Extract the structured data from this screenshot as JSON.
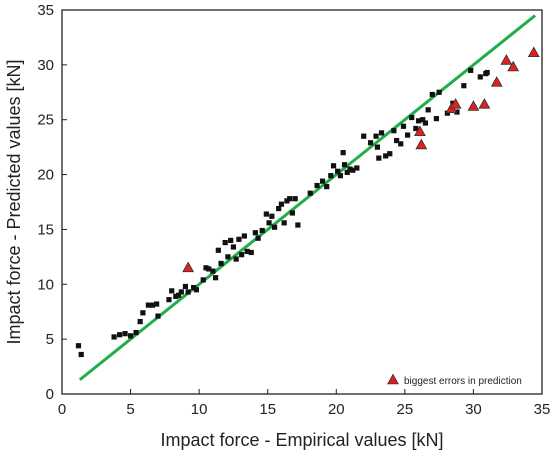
{
  "chart_data": {
    "type": "scatter",
    "title": "",
    "xlabel": "Impact force - Empirical values [kN]",
    "ylabel": "Impact force - Predicted values [kN]",
    "xlim": [
      0,
      35
    ],
    "ylim": [
      0,
      35
    ],
    "xticks": [
      0,
      5,
      10,
      15,
      20,
      25,
      30,
      35
    ],
    "yticks": [
      0,
      5,
      10,
      15,
      20,
      25,
      30,
      35
    ],
    "grid": false,
    "legend_position": "bottom-right",
    "fit_line": {
      "x": [
        1.3,
        34.5
      ],
      "y": [
        1.3,
        34.5
      ],
      "color": "#1fae48"
    },
    "series": [
      {
        "marker": "square",
        "color": "#111111",
        "points": [
          [
            1.2,
            4.4
          ],
          [
            1.4,
            3.6
          ],
          [
            3.8,
            5.2
          ],
          [
            4.2,
            5.4
          ],
          [
            4.6,
            5.5
          ],
          [
            5.0,
            5.3
          ],
          [
            5.4,
            5.6
          ],
          [
            5.7,
            6.6
          ],
          [
            5.9,
            7.4
          ],
          [
            6.3,
            8.1
          ],
          [
            6.6,
            8.1
          ],
          [
            6.9,
            8.2
          ],
          [
            7.0,
            7.1
          ],
          [
            7.8,
            8.6
          ],
          [
            8.0,
            9.4
          ],
          [
            8.3,
            8.9
          ],
          [
            8.5,
            9.0
          ],
          [
            8.7,
            9.3
          ],
          [
            9.0,
            9.8
          ],
          [
            9.2,
            9.3
          ],
          [
            9.6,
            9.7
          ],
          [
            9.8,
            9.5
          ],
          [
            10.3,
            10.4
          ],
          [
            10.5,
            11.5
          ],
          [
            10.7,
            11.4
          ],
          [
            11.0,
            11.2
          ],
          [
            11.2,
            10.6
          ],
          [
            11.4,
            13.1
          ],
          [
            11.6,
            11.9
          ],
          [
            11.9,
            13.8
          ],
          [
            12.1,
            12.5
          ],
          [
            12.3,
            14.0
          ],
          [
            12.5,
            13.4
          ],
          [
            12.7,
            12.3
          ],
          [
            12.9,
            14.1
          ],
          [
            13.1,
            12.7
          ],
          [
            13.3,
            14.4
          ],
          [
            13.5,
            13.0
          ],
          [
            13.8,
            12.9
          ],
          [
            14.1,
            14.7
          ],
          [
            14.3,
            14.2
          ],
          [
            14.6,
            14.9
          ],
          [
            14.9,
            16.4
          ],
          [
            15.1,
            15.6
          ],
          [
            15.3,
            16.2
          ],
          [
            15.5,
            15.2
          ],
          [
            15.8,
            16.9
          ],
          [
            16.0,
            17.3
          ],
          [
            16.2,
            15.6
          ],
          [
            16.4,
            17.6
          ],
          [
            16.6,
            17.8
          ],
          [
            16.8,
            16.5
          ],
          [
            17.0,
            17.8
          ],
          [
            17.2,
            15.4
          ],
          [
            18.1,
            18.3
          ],
          [
            18.6,
            19.0
          ],
          [
            19.0,
            19.4
          ],
          [
            19.3,
            18.9
          ],
          [
            19.6,
            19.9
          ],
          [
            19.8,
            20.8
          ],
          [
            20.1,
            20.3
          ],
          [
            20.3,
            19.9
          ],
          [
            20.5,
            22.0
          ],
          [
            20.6,
            20.9
          ],
          [
            20.8,
            20.2
          ],
          [
            21.0,
            20.5
          ],
          [
            21.2,
            20.4
          ],
          [
            21.5,
            20.6
          ],
          [
            22.0,
            23.5
          ],
          [
            22.5,
            22.9
          ],
          [
            22.9,
            23.5
          ],
          [
            23.0,
            22.5
          ],
          [
            23.1,
            21.5
          ],
          [
            23.3,
            23.8
          ],
          [
            23.6,
            21.7
          ],
          [
            23.9,
            21.9
          ],
          [
            24.2,
            24.0
          ],
          [
            24.4,
            23.1
          ],
          [
            24.7,
            22.8
          ],
          [
            24.9,
            24.4
          ],
          [
            25.2,
            23.6
          ],
          [
            25.5,
            25.2
          ],
          [
            25.8,
            24.2
          ],
          [
            26.0,
            24.9
          ],
          [
            26.3,
            25.0
          ],
          [
            26.5,
            24.7
          ],
          [
            26.7,
            25.9
          ],
          [
            27.0,
            27.3
          ],
          [
            27.3,
            25.1
          ],
          [
            27.5,
            27.5
          ],
          [
            28.1,
            25.6
          ],
          [
            28.5,
            26.5
          ],
          [
            28.8,
            25.7
          ],
          [
            29.3,
            28.1
          ],
          [
            29.8,
            29.5
          ],
          [
            30.5,
            28.9
          ],
          [
            30.9,
            29.2
          ],
          [
            31.0,
            29.3
          ]
        ]
      },
      {
        "name": "biggest errors in prediction",
        "marker": "triangle",
        "color": "#e02020",
        "points": [
          [
            9.2,
            11.5
          ],
          [
            26.1,
            23.9
          ],
          [
            26.2,
            22.7
          ],
          [
            28.4,
            26.0
          ],
          [
            28.7,
            26.4
          ],
          [
            30.0,
            26.2
          ],
          [
            30.8,
            26.4
          ],
          [
            31.7,
            28.4
          ],
          [
            32.4,
            30.4
          ],
          [
            32.9,
            29.8
          ],
          [
            34.4,
            31.1
          ]
        ]
      }
    ]
  }
}
